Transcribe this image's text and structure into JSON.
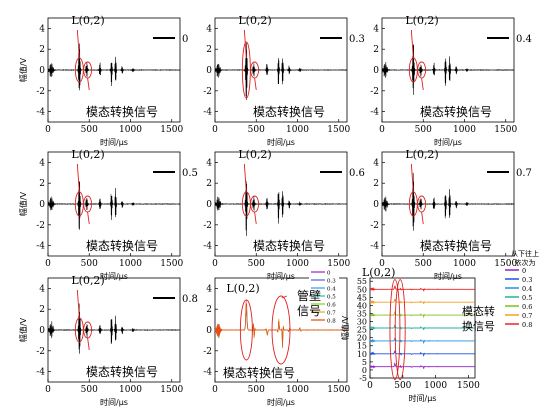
{
  "chart_data": [
    {
      "type": "line",
      "series": [
        {
          "name": "0"
        }
      ],
      "mode_label": "L(0,2)",
      "annotation": "模态转换信号",
      "xlabel": "时间/μs",
      "ylabel": "幅值/V",
      "xlim": [
        0,
        1600
      ],
      "ylim": [
        -5,
        5
      ],
      "xticks": [
        "0",
        "500",
        "1000",
        "1500"
      ],
      "yticks": [
        "-4",
        "-2",
        "0",
        "2",
        "4"
      ]
    },
    {
      "type": "line",
      "series": [
        {
          "name": "0.3"
        }
      ],
      "mode_label": "L(0,2)",
      "annotation": "模态转换信号",
      "xlabel": "时间/μs",
      "ylabel": "",
      "xlim": [
        0,
        1600
      ],
      "ylim": [
        -5,
        5
      ],
      "xticks": [
        "0",
        "500",
        "1000",
        "1500"
      ],
      "yticks": [
        "-4",
        "-2",
        "0",
        "2",
        "4"
      ]
    },
    {
      "type": "line",
      "series": [
        {
          "name": "0.4"
        }
      ],
      "mode_label": "L(0,2)",
      "annotation": "模态转换信号",
      "xlabel": "时间/μs",
      "ylabel": "",
      "xlim": [
        0,
        1600
      ],
      "ylim": [
        -5,
        5
      ],
      "xticks": [
        "0",
        "500",
        "1000",
        "1500"
      ],
      "yticks": [
        "-4",
        "-2",
        "0",
        "2",
        "4"
      ]
    },
    {
      "type": "line",
      "series": [
        {
          "name": "0.5"
        }
      ],
      "mode_label": "L(0,2)",
      "annotation": "模态转换信号",
      "xlabel": "时间/μs",
      "ylabel": "幅值/V",
      "xlim": [
        0,
        1600
      ],
      "ylim": [
        -5,
        5
      ],
      "xticks": [
        "0",
        "500",
        "1000",
        "1500"
      ],
      "yticks": [
        "-4",
        "-2",
        "0",
        "2",
        "4"
      ]
    },
    {
      "type": "line",
      "series": [
        {
          "name": "0.6"
        }
      ],
      "mode_label": "L(0,2)",
      "annotation": "模态转换信号",
      "xlabel": "时间/μs",
      "ylabel": "",
      "xlim": [
        0,
        1600
      ],
      "ylim": [
        -5,
        5
      ],
      "xticks": [
        "0",
        "500",
        "1000",
        "1500"
      ],
      "yticks": [
        "-4",
        "-2",
        "0",
        "2",
        "4"
      ]
    },
    {
      "type": "line",
      "series": [
        {
          "name": "0.7"
        }
      ],
      "mode_label": "L(0,2)",
      "annotation": "模态转换信号",
      "xlabel": "时间/μs",
      "ylabel": "",
      "xlim": [
        0,
        1600
      ],
      "ylim": [
        -5,
        5
      ],
      "xticks": [
        "0",
        "500",
        "1000",
        "1500"
      ],
      "yticks": [
        "-4",
        "-2",
        "0",
        "2",
        "4"
      ]
    },
    {
      "type": "line",
      "series": [
        {
          "name": "0.8"
        }
      ],
      "mode_label": "L(0,2)",
      "annotation": "模态转换信号",
      "xlabel": "时间/μs",
      "ylabel": "幅值/V",
      "xlim": [
        0,
        1600
      ],
      "ylim": [
        -5,
        5
      ],
      "xticks": [
        "0",
        "500",
        "1000",
        "1500"
      ],
      "yticks": [
        "-4",
        "-2",
        "0",
        "2",
        "4"
      ]
    },
    {
      "type": "line",
      "series": [
        {
          "name": "0",
          "color": "#a020c8"
        },
        {
          "name": "0.3",
          "color": "#5060e0"
        },
        {
          "name": "0.4",
          "color": "#30a0e0"
        },
        {
          "name": "0.5",
          "color": "#20c0c0"
        },
        {
          "name": "0.6",
          "color": "#80d020"
        },
        {
          "name": "0.7",
          "color": "#f0a020"
        },
        {
          "name": "0.8",
          "color": "#f04010"
        }
      ],
      "mode_label": "L(0,2)",
      "annotation": "模态转换信号",
      "wall_label": [
        "管壁",
        "信号"
      ],
      "xlabel": "时间/μs",
      "ylabel": "",
      "xlim": [
        0,
        1600
      ],
      "ylim": [
        -5,
        5
      ],
      "xticks": [
        "0",
        "500",
        "1000",
        "1500"
      ],
      "yticks": [
        "-4",
        "-2",
        "0",
        "2",
        "4"
      ]
    },
    {
      "type": "line",
      "series": [
        {
          "name": "0",
          "color": "#9020d0"
        },
        {
          "name": "0.3",
          "color": "#2050e0"
        },
        {
          "name": "0.4",
          "color": "#2090e0"
        },
        {
          "name": "0.5",
          "color": "#20b0a0"
        },
        {
          "name": "0.6",
          "color": "#80c020"
        },
        {
          "name": "0.7",
          "color": "#f0a020"
        },
        {
          "name": "0.8",
          "color": "#f02020"
        }
      ],
      "mode_label": "L(0,2)",
      "annotation": [
        "模态转",
        "换信号"
      ],
      "legend_title": [
        "从下往上",
        "依次为"
      ],
      "xlabel": "时间/μs",
      "ylabel": "幅值/V",
      "xlim": [
        0,
        1600
      ],
      "ylim": [
        -5,
        57
      ],
      "xticks": [
        "0",
        "500",
        "1000",
        "1500"
      ],
      "yticks": [
        "-5",
        "0",
        "5",
        "10",
        "15",
        "20",
        "25",
        "30",
        "35",
        "40",
        "45",
        "50",
        "55"
      ]
    }
  ]
}
